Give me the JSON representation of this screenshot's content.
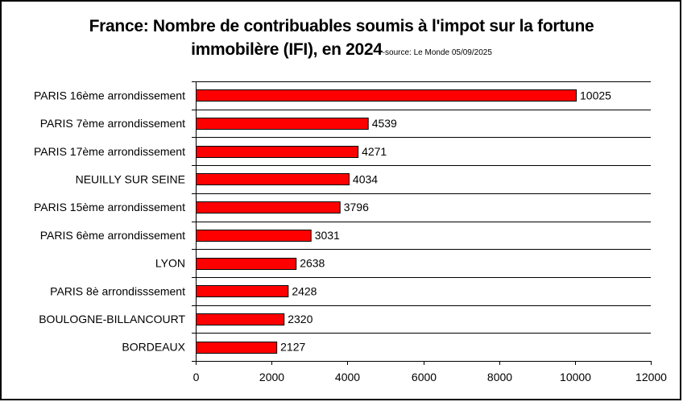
{
  "chart_data": {
    "type": "bar",
    "orientation": "horizontal",
    "title": "France: Nombre de contribuables soumis à l'impot sur la fortune immobilère (IFI), en 2024",
    "title_line1": "France: Nombre de contribuables soumis à l'impot sur la fortune",
    "title_line2": "immobilère (IFI), en 2024",
    "subtitle": "-source: Le Monde 05/09/2025",
    "xlabel": "",
    "ylabel": "",
    "categories": [
      "PARIS 16ème arrondissement",
      "PARIS 7ème arrondissement",
      "PARIS 17ème arrondissement",
      "NEUILLY SUR SEINE",
      "PARIS 15ème arrondissement",
      "PARIS 6ème arrondissement",
      "LYON",
      "PARIS 8è arrondisssement",
      "BOULOGNE-BILLANCOURT",
      "BORDEAUX"
    ],
    "values": [
      10025,
      4539,
      4271,
      4034,
      3796,
      3031,
      2638,
      2428,
      2320,
      2127
    ],
    "data_labels": [
      "10025",
      "4539",
      "4271",
      "4034",
      "3796",
      "3031",
      "2638",
      "2428",
      "2320",
      "2127"
    ],
    "xlim": [
      0,
      12000
    ],
    "x_ticks": [
      0,
      2000,
      4000,
      6000,
      8000,
      10000,
      12000
    ],
    "x_tick_labels": [
      "0",
      "2000",
      "4000",
      "6000",
      "8000",
      "10000",
      "12000"
    ],
    "grid": "horizontal category separators",
    "legend": "none",
    "bar_color": "#ff0000",
    "bar_edge_color": "#000000"
  }
}
